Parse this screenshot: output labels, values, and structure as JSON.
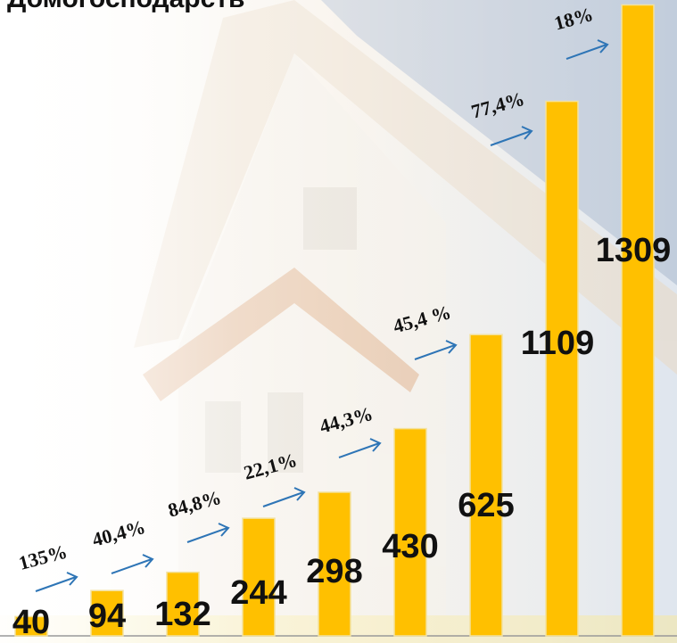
{
  "chart_data": {
    "type": "bar",
    "title": "Домогосподарств",
    "values": [
      40,
      94,
      132,
      244,
      298,
      430,
      625,
      1109,
      1309
    ],
    "ylim": [
      0,
      1310
    ],
    "color": "#ffc000",
    "annotations": [
      "135%",
      "40,4%",
      "84,8%",
      "22,1%",
      "44,3%",
      "45,4 %",
      "77,4%",
      "18%"
    ]
  }
}
